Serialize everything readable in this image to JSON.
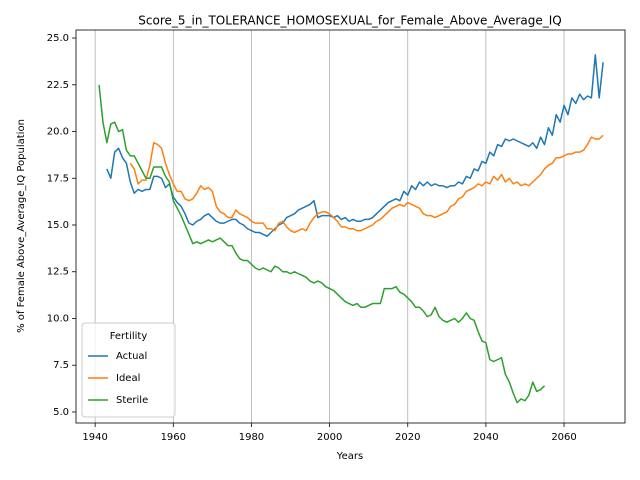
{
  "chart_data": {
    "type": "line",
    "title": "Score_5_in_TOLERANCE_HOMOSEXUAL_for_Female_Above_Average_IQ",
    "xlabel": "Years",
    "ylabel": "% of Female Above_Average_IQ Population",
    "legend_title": "Fertility",
    "legend": "lower left",
    "grid": "x",
    "xlim": [
      1935.1,
      2075.6
    ],
    "xticks": [
      1940,
      1960,
      1980,
      2000,
      2020,
      2040,
      2060
    ],
    "ylim": [
      4.41,
      25.43
    ],
    "yticks": [
      {
        "value": 5,
        "label": "5.0"
      },
      {
        "value": 7.5,
        "label": "7.5"
      },
      {
        "value": 10,
        "label": "10.0"
      },
      {
        "value": 12.5,
        "label": "12.5"
      },
      {
        "value": 15,
        "label": "15.0"
      },
      {
        "value": 17.5,
        "label": "17.5"
      },
      {
        "value": 20,
        "label": "20.0"
      },
      {
        "value": 22.5,
        "label": "22.5"
      },
      {
        "value": 25,
        "label": "25.0"
      }
    ],
    "x": [
      1941,
      1942,
      1943,
      1944,
      1945,
      1946,
      1947,
      1948,
      1949,
      1950,
      1951,
      1952,
      1953,
      1954,
      1955,
      1956,
      1957,
      1958,
      1959,
      1960,
      1961,
      1962,
      1963,
      1964,
      1965,
      1966,
      1967,
      1968,
      1969,
      1970,
      1971,
      1972,
      1973,
      1974,
      1975,
      1976,
      1977,
      1978,
      1979,
      1980,
      1981,
      1982,
      1983,
      1984,
      1985,
      1986,
      1987,
      1988,
      1989,
      1990,
      1991,
      1992,
      1993,
      1994,
      1995,
      1996,
      1997,
      1998,
      1999,
      2000,
      2001,
      2002,
      2003,
      2004,
      2005,
      2006,
      2007,
      2008,
      2009,
      2010,
      2011,
      2012,
      2013,
      2014,
      2015,
      2016,
      2017,
      2018,
      2019,
      2020,
      2021,
      2022,
      2023,
      2024,
      2025,
      2026,
      2027,
      2028,
      2029,
      2030,
      2031,
      2032,
      2033,
      2034,
      2035,
      2036,
      2037,
      2038,
      2039,
      2040,
      2041,
      2042,
      2043,
      2044,
      2045,
      2046,
      2047,
      2048,
      2049,
      2050,
      2051,
      2052,
      2053,
      2054,
      2055,
      2056,
      2057,
      2058,
      2059,
      2060,
      2061,
      2062,
      2063,
      2064,
      2065,
      2066,
      2067,
      2068,
      2069,
      2070
    ],
    "series": [
      {
        "name": "Actual",
        "color": "#1f77b4",
        "values": [
          null,
          null,
          18.0,
          17.5,
          18.9,
          19.1,
          18.6,
          18.3,
          17.3,
          16.7,
          16.9,
          16.8,
          16.9,
          16.9,
          17.6,
          17.6,
          17.5,
          17.0,
          17.2,
          16.5,
          16.2,
          16.0,
          15.6,
          15.1,
          15.0,
          15.2,
          15.3,
          15.5,
          15.6,
          15.4,
          15.2,
          15.1,
          15.1,
          15.2,
          15.3,
          15.3,
          15.1,
          15.0,
          14.8,
          14.7,
          14.6,
          14.6,
          14.5,
          14.4,
          14.6,
          14.8,
          15.0,
          15.1,
          15.4,
          15.5,
          15.6,
          15.8,
          15.9,
          16.0,
          16.1,
          16.3,
          15.4,
          15.5,
          15.5,
          15.5,
          15.4,
          15.5,
          15.3,
          15.4,
          15.2,
          15.3,
          15.2,
          15.2,
          15.3,
          15.3,
          15.4,
          15.6,
          15.8,
          16.0,
          16.2,
          16.3,
          16.4,
          16.3,
          16.8,
          16.6,
          17.1,
          16.9,
          17.3,
          17.1,
          17.3,
          17.1,
          17.2,
          17.1,
          17.1,
          17.0,
          17.1,
          17.1,
          17.3,
          17.2,
          17.6,
          17.5,
          18.0,
          17.9,
          18.4,
          18.3,
          18.9,
          18.7,
          19.3,
          19.2,
          19.6,
          19.5,
          19.6,
          19.5,
          19.4,
          19.3,
          19.2,
          19.4,
          19.1,
          19.7,
          19.3,
          20.2,
          19.8,
          20.9,
          20.5,
          21.4,
          20.9,
          21.8,
          21.5,
          22.0,
          21.7,
          21.9,
          21.8,
          24.1,
          21.8,
          23.7
        ]
      },
      {
        "name": "Ideal",
        "color": "#ff7f0e",
        "values": [
          null,
          null,
          null,
          null,
          null,
          null,
          null,
          null,
          18.3,
          18.0,
          17.2,
          17.4,
          17.4,
          18.2,
          19.4,
          19.3,
          19.1,
          18.3,
          17.7,
          17.2,
          16.8,
          16.8,
          16.4,
          16.3,
          16.4,
          16.7,
          17.1,
          16.9,
          17.0,
          16.8,
          16.0,
          15.7,
          15.6,
          15.4,
          15.4,
          15.8,
          15.6,
          15.5,
          15.4,
          15.2,
          15.1,
          15.1,
          15.1,
          14.8,
          14.8,
          14.7,
          15.1,
          15.2,
          14.9,
          14.7,
          14.6,
          14.7,
          14.8,
          14.7,
          15.1,
          15.4,
          15.6,
          15.7,
          15.7,
          15.6,
          15.4,
          15.2,
          14.9,
          14.9,
          14.8,
          14.8,
          14.7,
          14.7,
          14.8,
          14.9,
          15.0,
          15.2,
          15.3,
          15.5,
          15.7,
          15.9,
          16.0,
          16.1,
          16.0,
          16.2,
          16.1,
          16.0,
          15.9,
          15.6,
          15.5,
          15.5,
          15.4,
          15.5,
          15.6,
          15.7,
          16.0,
          16.1,
          16.4,
          16.5,
          16.8,
          16.9,
          17.0,
          17.2,
          17.1,
          17.3,
          17.2,
          17.6,
          17.4,
          17.7,
          17.3,
          17.5,
          17.2,
          17.3,
          17.1,
          17.2,
          17.1,
          17.3,
          17.5,
          17.7,
          18.0,
          18.2,
          18.3,
          18.6,
          18.6,
          18.7,
          18.8,
          18.8,
          18.9,
          18.9,
          19.0,
          19.3,
          19.7,
          19.6,
          19.6,
          19.8
        ]
      },
      {
        "name": "Sterile",
        "color": "#2ca02c",
        "values": [
          22.5,
          20.5,
          19.4,
          20.4,
          20.5,
          20.0,
          20.1,
          19.0,
          18.7,
          18.7,
          18.3,
          17.9,
          17.5,
          17.5,
          18.1,
          18.1,
          18.1,
          17.6,
          17.3,
          16.3,
          15.9,
          15.5,
          15.0,
          14.5,
          14.0,
          14.1,
          14.0,
          14.1,
          14.2,
          14.1,
          14.2,
          14.3,
          14.1,
          13.9,
          13.9,
          13.5,
          13.2,
          13.1,
          13.1,
          12.9,
          12.7,
          12.6,
          12.7,
          12.6,
          12.5,
          12.8,
          12.7,
          12.5,
          12.5,
          12.4,
          12.5,
          12.4,
          12.3,
          12.2,
          12.0,
          11.9,
          12.0,
          11.9,
          11.7,
          11.6,
          11.5,
          11.3,
          11.1,
          10.9,
          10.8,
          10.7,
          10.8,
          10.6,
          10.6,
          10.7,
          10.8,
          10.8,
          10.8,
          11.6,
          11.6,
          11.6,
          11.7,
          11.4,
          11.3,
          11.1,
          10.9,
          10.6,
          10.6,
          10.4,
          10.1,
          10.2,
          10.6,
          10.1,
          9.9,
          9.8,
          9.9,
          10.0,
          9.8,
          10.0,
          10.3,
          10.0,
          9.9,
          9.3,
          8.8,
          8.7,
          7.8,
          7.7,
          7.8,
          7.9,
          7.0,
          6.6,
          6.0,
          5.5,
          5.7,
          5.6,
          5.9,
          6.6,
          6.1,
          6.2,
          6.4,
          null,
          null,
          null,
          null,
          null,
          null,
          null,
          null,
          null,
          null,
          null,
          null,
          null,
          null,
          null
        ]
      }
    ]
  }
}
